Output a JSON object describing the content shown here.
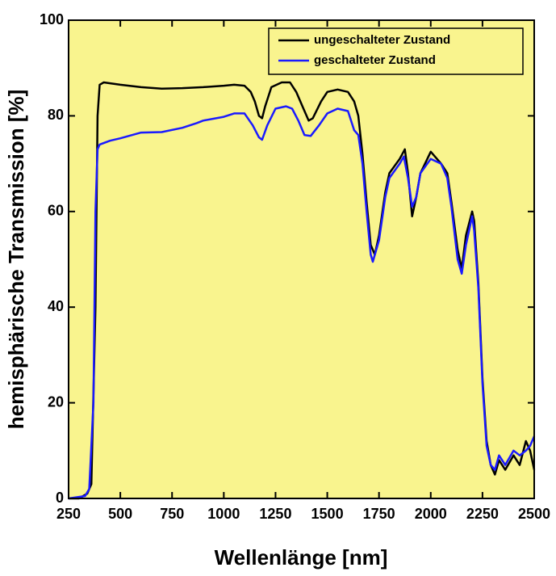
{
  "chart_data": {
    "type": "line",
    "x_label": "Wellenlänge [nm]",
    "y_label": "hemisphärische Transmission [%]",
    "xlim": [
      250,
      2500
    ],
    "xticks": [
      250,
      500,
      750,
      1000,
      1250,
      1500,
      1750,
      2000,
      2250,
      2500
    ],
    "ylim": [
      0,
      100
    ],
    "yticks": [
      0,
      20,
      40,
      60,
      80,
      100
    ],
    "background": "#f9f48e",
    "legend": "upper right",
    "series": [
      {
        "name": "ungeschalteter Zustand",
        "color": "#000000",
        "x": [
          250,
          300,
          320,
          340,
          360,
          380,
          390,
          400,
          420,
          500,
          600,
          700,
          800,
          900,
          1000,
          1050,
          1100,
          1130,
          1150,
          1170,
          1185,
          1200,
          1230,
          1280,
          1320,
          1350,
          1380,
          1410,
          1430,
          1470,
          1500,
          1550,
          1600,
          1630,
          1650,
          1670,
          1690,
          1710,
          1730,
          1750,
          1780,
          1800,
          1850,
          1875,
          1890,
          1910,
          1930,
          1950,
          2000,
          2050,
          2080,
          2100,
          2130,
          2150,
          2170,
          2200,
          2210,
          2230,
          2250,
          2270,
          2290,
          2310,
          2330,
          2360,
          2400,
          2430,
          2460,
          2480,
          2500
        ],
        "values": [
          0,
          0,
          0.5,
          1,
          3,
          40,
          80,
          86.5,
          87,
          86.5,
          86,
          85.7,
          85.8,
          86,
          86.3,
          86.5,
          86.3,
          85,
          83,
          80,
          79.5,
          82,
          86,
          87,
          87,
          85,
          82,
          79,
          79.5,
          83,
          85,
          85.5,
          85,
          83,
          80,
          72,
          62,
          53,
          51,
          55,
          64,
          68,
          71,
          73,
          68,
          59,
          63,
          68,
          72.5,
          70,
          68,
          62,
          52,
          48,
          55,
          60,
          58,
          45,
          25,
          12,
          7,
          5,
          8,
          6,
          9,
          7,
          12,
          10,
          6
        ]
      },
      {
        "name": "geschalteter Zustand",
        "color": "#1a1aff",
        "x": [
          250,
          330,
          350,
          370,
          380,
          390,
          400,
          450,
          500,
          600,
          700,
          800,
          870,
          900,
          1000,
          1050,
          1100,
          1140,
          1170,
          1185,
          1210,
          1250,
          1300,
          1330,
          1360,
          1390,
          1420,
          1460,
          1500,
          1550,
          1600,
          1630,
          1650,
          1670,
          1690,
          1710,
          1720,
          1750,
          1780,
          1800,
          1850,
          1870,
          1890,
          1910,
          1930,
          1950,
          2000,
          2050,
          2080,
          2100,
          2130,
          2150,
          2170,
          2200,
          2210,
          2230,
          2250,
          2270,
          2290,
          2310,
          2330,
          2360,
          2400,
          2430,
          2460,
          2480,
          2500
        ],
        "values": [
          0,
          0.5,
          2,
          20,
          60,
          73,
          74,
          74.8,
          75.3,
          76.5,
          76.6,
          77.5,
          78.5,
          79,
          79.8,
          80.5,
          80.5,
          78,
          75.5,
          75,
          78,
          81.5,
          82,
          81.5,
          79,
          76,
          75.8,
          78,
          80.5,
          81.5,
          81,
          77,
          76,
          70,
          60,
          51,
          49.5,
          54,
          63,
          67,
          70,
          71.5,
          67,
          61,
          63,
          68,
          71,
          70,
          67,
          61,
          50,
          47,
          53,
          59,
          56,
          44,
          24,
          11,
          7,
          6,
          9,
          7,
          10,
          9,
          10,
          11,
          13
        ]
      }
    ]
  }
}
